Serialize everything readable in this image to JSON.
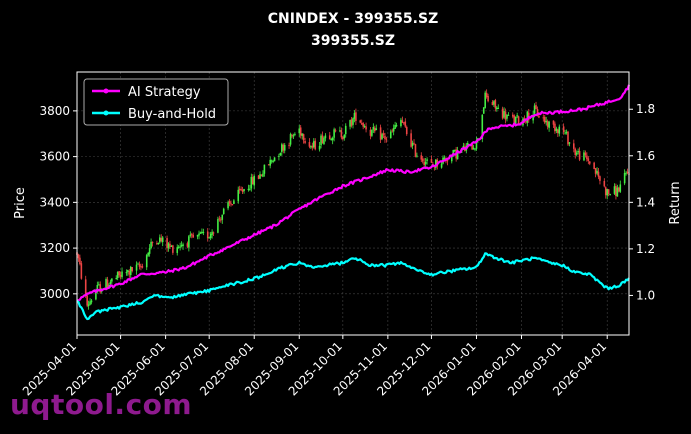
{
  "watermark": "uqtool.com",
  "colors": {
    "background": "#000000",
    "up_candle": "#44ee44",
    "down_candle": "#ee4444",
    "ai_strategy": "#ff00ff",
    "buy_and_hold": "#00ffff",
    "watermark": "#8e1a8e"
  },
  "chart_data": {
    "type": "candlestick+line",
    "title": "CNINDEX - 399355.SZ",
    "subtitle": "399355.SZ",
    "xlabel": "",
    "ylabel_left": "Price",
    "ylabel_right": "Return",
    "x_range": [
      "2025-04-01",
      "2026-04-16"
    ],
    "ylim_left": [
      2820,
      3970
    ],
    "ylim_right": [
      0.83,
      1.96
    ],
    "grid": true,
    "legend_position": "top-left",
    "x_ticks": [
      "2025-04-01",
      "2025-05-01",
      "2025-06-01",
      "2025-07-01",
      "2025-08-01",
      "2025-09-01",
      "2025-10-01",
      "2025-11-01",
      "2025-12-01",
      "2026-01-01",
      "2026-02-01",
      "2026-03-01",
      "2026-04-01"
    ],
    "y_ticks_left": [
      3000,
      3200,
      3400,
      3600,
      3800
    ],
    "y_ticks_right": [
      1.0,
      1.2,
      1.4,
      1.6,
      1.8
    ],
    "price_path": [
      [
        "2025-04-01",
        3180
      ],
      [
        "2025-04-08",
        2950
      ],
      [
        "2025-04-15",
        3020
      ],
      [
        "2025-05-01",
        3080
      ],
      [
        "2025-05-15",
        3120
      ],
      [
        "2025-05-25",
        3250
      ],
      [
        "2025-06-05",
        3200
      ],
      [
        "2025-06-20",
        3240
      ],
      [
        "2025-07-01",
        3260
      ],
      [
        "2025-07-10",
        3350
      ],
      [
        "2025-07-25",
        3460
      ],
      [
        "2025-08-05",
        3520
      ],
      [
        "2025-08-20",
        3640
      ],
      [
        "2025-09-01",
        3720
      ],
      [
        "2025-09-10",
        3640
      ],
      [
        "2025-09-20",
        3700
      ],
      [
        "2025-10-01",
        3700
      ],
      [
        "2025-10-10",
        3780
      ],
      [
        "2025-10-20",
        3710
      ],
      [
        "2025-11-01",
        3680
      ],
      [
        "2025-11-10",
        3760
      ],
      [
        "2025-11-20",
        3620
      ],
      [
        "2025-12-01",
        3560
      ],
      [
        "2025-12-10",
        3590
      ],
      [
        "2025-12-20",
        3620
      ],
      [
        "2026-01-01",
        3660
      ],
      [
        "2026-01-07",
        3860
      ],
      [
        "2026-01-15",
        3810
      ],
      [
        "2026-01-25",
        3760
      ],
      [
        "2026-02-01",
        3760
      ],
      [
        "2026-02-10",
        3800
      ],
      [
        "2026-02-20",
        3740
      ],
      [
        "2026-03-01",
        3720
      ],
      [
        "2026-03-10",
        3620
      ],
      [
        "2026-03-20",
        3580
      ],
      [
        "2026-04-01",
        3440
      ],
      [
        "2026-04-08",
        3450
      ],
      [
        "2026-04-16",
        3540
      ]
    ],
    "series": [
      {
        "name": "AI Strategy",
        "points": [
          [
            "2025-04-01",
            0.98
          ],
          [
            "2025-04-10",
            1.01
          ],
          [
            "2025-04-20",
            1.03
          ],
          [
            "2025-05-01",
            1.05
          ],
          [
            "2025-05-15",
            1.09
          ],
          [
            "2025-06-01",
            1.1
          ],
          [
            "2025-06-15",
            1.12
          ],
          [
            "2025-07-01",
            1.17
          ],
          [
            "2025-07-15",
            1.21
          ],
          [
            "2025-08-01",
            1.26
          ],
          [
            "2025-08-15",
            1.3
          ],
          [
            "2025-09-01",
            1.37
          ],
          [
            "2025-09-15",
            1.42
          ],
          [
            "2025-10-01",
            1.47
          ],
          [
            "2025-10-15",
            1.5
          ],
          [
            "2025-11-01",
            1.54
          ],
          [
            "2025-11-15",
            1.53
          ],
          [
            "2025-12-01",
            1.55
          ],
          [
            "2025-12-15",
            1.6
          ],
          [
            "2026-01-01",
            1.66
          ],
          [
            "2026-01-10",
            1.72
          ],
          [
            "2026-01-25",
            1.73
          ],
          [
            "2026-02-01",
            1.74
          ],
          [
            "2026-02-10",
            1.78
          ],
          [
            "2026-03-01",
            1.79
          ],
          [
            "2026-03-15",
            1.8
          ],
          [
            "2026-04-01",
            1.83
          ],
          [
            "2026-04-10",
            1.85
          ],
          [
            "2026-04-16",
            1.9
          ]
        ]
      },
      {
        "name": "Buy-and-Hold",
        "points": [
          [
            "2025-04-01",
            0.98
          ],
          [
            "2025-04-08",
            0.9
          ],
          [
            "2025-04-15",
            0.93
          ],
          [
            "2025-05-01",
            0.95
          ],
          [
            "2025-05-15",
            0.97
          ],
          [
            "2025-05-25",
            1.0
          ],
          [
            "2025-06-05",
            0.99
          ],
          [
            "2025-06-20",
            1.01
          ],
          [
            "2025-07-01",
            1.02
          ],
          [
            "2025-07-10",
            1.04
          ],
          [
            "2025-07-25",
            1.06
          ],
          [
            "2025-08-05",
            1.08
          ],
          [
            "2025-08-20",
            1.12
          ],
          [
            "2025-09-01",
            1.14
          ],
          [
            "2025-09-10",
            1.12
          ],
          [
            "2025-09-20",
            1.13
          ],
          [
            "2025-10-01",
            1.14
          ],
          [
            "2025-10-10",
            1.16
          ],
          [
            "2025-10-20",
            1.13
          ],
          [
            "2025-11-01",
            1.13
          ],
          [
            "2025-11-10",
            1.14
          ],
          [
            "2025-11-20",
            1.11
          ],
          [
            "2025-12-01",
            1.09
          ],
          [
            "2025-12-10",
            1.1
          ],
          [
            "2025-12-20",
            1.11
          ],
          [
            "2026-01-01",
            1.12
          ],
          [
            "2026-01-07",
            1.18
          ],
          [
            "2026-01-15",
            1.16
          ],
          [
            "2026-01-25",
            1.14
          ],
          [
            "2026-02-01",
            1.15
          ],
          [
            "2026-02-10",
            1.16
          ],
          [
            "2026-02-20",
            1.14
          ],
          [
            "2026-03-01",
            1.13
          ],
          [
            "2026-03-10",
            1.1
          ],
          [
            "2026-03-20",
            1.09
          ],
          [
            "2026-04-01",
            1.03
          ],
          [
            "2026-04-08",
            1.04
          ],
          [
            "2026-04-16",
            1.07
          ]
        ]
      }
    ]
  }
}
